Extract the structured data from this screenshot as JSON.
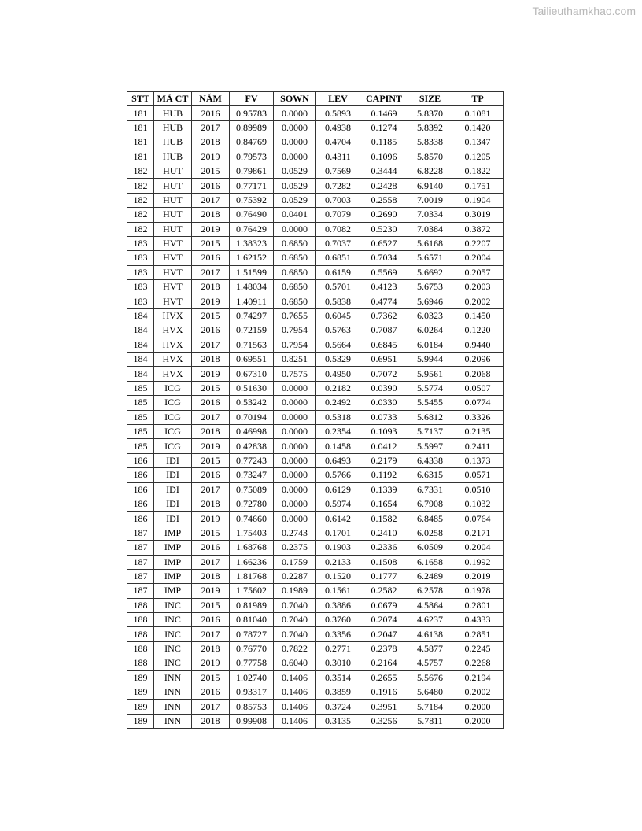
{
  "watermark": "Tailieuthamkhao.com",
  "table": {
    "headers": [
      "STT",
      "MÃ CT",
      "NĂM",
      "FV",
      "SOWN",
      "LEV",
      "CAPINT",
      "SIZE",
      "TP"
    ],
    "rows": [
      [
        "181",
        "HUB",
        "2016",
        "0.95783",
        "0.0000",
        "0.5893",
        "0.1469",
        "5.8370",
        "0.1081"
      ],
      [
        "181",
        "HUB",
        "2017",
        "0.89989",
        "0.0000",
        "0.4938",
        "0.1274",
        "5.8392",
        "0.1420"
      ],
      [
        "181",
        "HUB",
        "2018",
        "0.84769",
        "0.0000",
        "0.4704",
        "0.1185",
        "5.8338",
        "0.1347"
      ],
      [
        "181",
        "HUB",
        "2019",
        "0.79573",
        "0.0000",
        "0.4311",
        "0.1096",
        "5.8570",
        "0.1205"
      ],
      [
        "182",
        "HUT",
        "2015",
        "0.79861",
        "0.0529",
        "0.7569",
        "0.3444",
        "6.8228",
        "0.1822"
      ],
      [
        "182",
        "HUT",
        "2016",
        "0.77171",
        "0.0529",
        "0.7282",
        "0.2428",
        "6.9140",
        "0.1751"
      ],
      [
        "182",
        "HUT",
        "2017",
        "0.75392",
        "0.0529",
        "0.7003",
        "0.2558",
        "7.0019",
        "0.1904"
      ],
      [
        "182",
        "HUT",
        "2018",
        "0.76490",
        "0.0401",
        "0.7079",
        "0.2690",
        "7.0334",
        "0.3019"
      ],
      [
        "182",
        "HUT",
        "2019",
        "0.76429",
        "0.0000",
        "0.7082",
        "0.5230",
        "7.0384",
        "0.3872"
      ],
      [
        "183",
        "HVT",
        "2015",
        "1.38323",
        "0.6850",
        "0.7037",
        "0.6527",
        "5.6168",
        "0.2207"
      ],
      [
        "183",
        "HVT",
        "2016",
        "1.62152",
        "0.6850",
        "0.6851",
        "0.7034",
        "5.6571",
        "0.2004"
      ],
      [
        "183",
        "HVT",
        "2017",
        "1.51599",
        "0.6850",
        "0.6159",
        "0.5569",
        "5.6692",
        "0.2057"
      ],
      [
        "183",
        "HVT",
        "2018",
        "1.48034",
        "0.6850",
        "0.5701",
        "0.4123",
        "5.6753",
        "0.2003"
      ],
      [
        "183",
        "HVT",
        "2019",
        "1.40911",
        "0.6850",
        "0.5838",
        "0.4774",
        "5.6946",
        "0.2002"
      ],
      [
        "184",
        "HVX",
        "2015",
        "0.74297",
        "0.7655",
        "0.6045",
        "0.7362",
        "6.0323",
        "0.1450"
      ],
      [
        "184",
        "HVX",
        "2016",
        "0.72159",
        "0.7954",
        "0.5763",
        "0.7087",
        "6.0264",
        "0.1220"
      ],
      [
        "184",
        "HVX",
        "2017",
        "0.71563",
        "0.7954",
        "0.5664",
        "0.6845",
        "6.0184",
        "0.9440"
      ],
      [
        "184",
        "HVX",
        "2018",
        "0.69551",
        "0.8251",
        "0.5329",
        "0.6951",
        "5.9944",
        "0.2096"
      ],
      [
        "184",
        "HVX",
        "2019",
        "0.67310",
        "0.7575",
        "0.4950",
        "0.7072",
        "5.9561",
        "0.2068"
      ],
      [
        "185",
        "ICG",
        "2015",
        "0.51630",
        "0.0000",
        "0.2182",
        "0.0390",
        "5.5774",
        "0.0507"
      ],
      [
        "185",
        "ICG",
        "2016",
        "0.53242",
        "0.0000",
        "0.2492",
        "0.0330",
        "5.5455",
        "0.0774"
      ],
      [
        "185",
        "ICG",
        "2017",
        "0.70194",
        "0.0000",
        "0.5318",
        "0.0733",
        "5.6812",
        "0.3326"
      ],
      [
        "185",
        "ICG",
        "2018",
        "0.46998",
        "0.0000",
        "0.2354",
        "0.1093",
        "5.7137",
        "0.2135"
      ],
      [
        "185",
        "ICG",
        "2019",
        "0.42838",
        "0.0000",
        "0.1458",
        "0.0412",
        "5.5997",
        "0.2411"
      ],
      [
        "186",
        "IDI",
        "2015",
        "0.77243",
        "0.0000",
        "0.6493",
        "0.2179",
        "6.4338",
        "0.1373"
      ],
      [
        "186",
        "IDI",
        "2016",
        "0.73247",
        "0.0000",
        "0.5766",
        "0.1192",
        "6.6315",
        "0.0571"
      ],
      [
        "186",
        "IDI",
        "2017",
        "0.75089",
        "0.0000",
        "0.6129",
        "0.1339",
        "6.7331",
        "0.0510"
      ],
      [
        "186",
        "IDI",
        "2018",
        "0.72780",
        "0.0000",
        "0.5974",
        "0.1654",
        "6.7908",
        "0.1032"
      ],
      [
        "186",
        "IDI",
        "2019",
        "0.74660",
        "0.0000",
        "0.6142",
        "0.1582",
        "6.8485",
        "0.0764"
      ],
      [
        "187",
        "IMP",
        "2015",
        "1.75403",
        "0.2743",
        "0.1701",
        "0.2410",
        "6.0258",
        "0.2171"
      ],
      [
        "187",
        "IMP",
        "2016",
        "1.68768",
        "0.2375",
        "0.1903",
        "0.2336",
        "6.0509",
        "0.2004"
      ],
      [
        "187",
        "IMP",
        "2017",
        "1.66236",
        "0.1759",
        "0.2133",
        "0.1508",
        "6.1658",
        "0.1992"
      ],
      [
        "187",
        "IMP",
        "2018",
        "1.81768",
        "0.2287",
        "0.1520",
        "0.1777",
        "6.2489",
        "0.2019"
      ],
      [
        "187",
        "IMP",
        "2019",
        "1.75602",
        "0.1989",
        "0.1561",
        "0.2582",
        "6.2578",
        "0.1978"
      ],
      [
        "188",
        "INC",
        "2015",
        "0.81989",
        "0.7040",
        "0.3886",
        "0.0679",
        "4.5864",
        "0.2801"
      ],
      [
        "188",
        "INC",
        "2016",
        "0.81040",
        "0.7040",
        "0.3760",
        "0.2074",
        "4.6237",
        "0.4333"
      ],
      [
        "188",
        "INC",
        "2017",
        "0.78727",
        "0.7040",
        "0.3356",
        "0.2047",
        "4.6138",
        "0.2851"
      ],
      [
        "188",
        "INC",
        "2018",
        "0.76770",
        "0.7822",
        "0.2771",
        "0.2378",
        "4.5877",
        "0.2245"
      ],
      [
        "188",
        "INC",
        "2019",
        "0.77758",
        "0.6040",
        "0.3010",
        "0.2164",
        "4.5757",
        "0.2268"
      ],
      [
        "189",
        "INN",
        "2015",
        "1.02740",
        "0.1406",
        "0.3514",
        "0.2655",
        "5.5676",
        "0.2194"
      ],
      [
        "189",
        "INN",
        "2016",
        "0.93317",
        "0.1406",
        "0.3859",
        "0.1916",
        "5.6480",
        "0.2002"
      ],
      [
        "189",
        "INN",
        "2017",
        "0.85753",
        "0.1406",
        "0.3724",
        "0.3951",
        "5.7184",
        "0.2000"
      ],
      [
        "189",
        "INN",
        "2018",
        "0.99908",
        "0.1406",
        "0.3135",
        "0.3256",
        "5.7811",
        "0.2000"
      ]
    ]
  }
}
